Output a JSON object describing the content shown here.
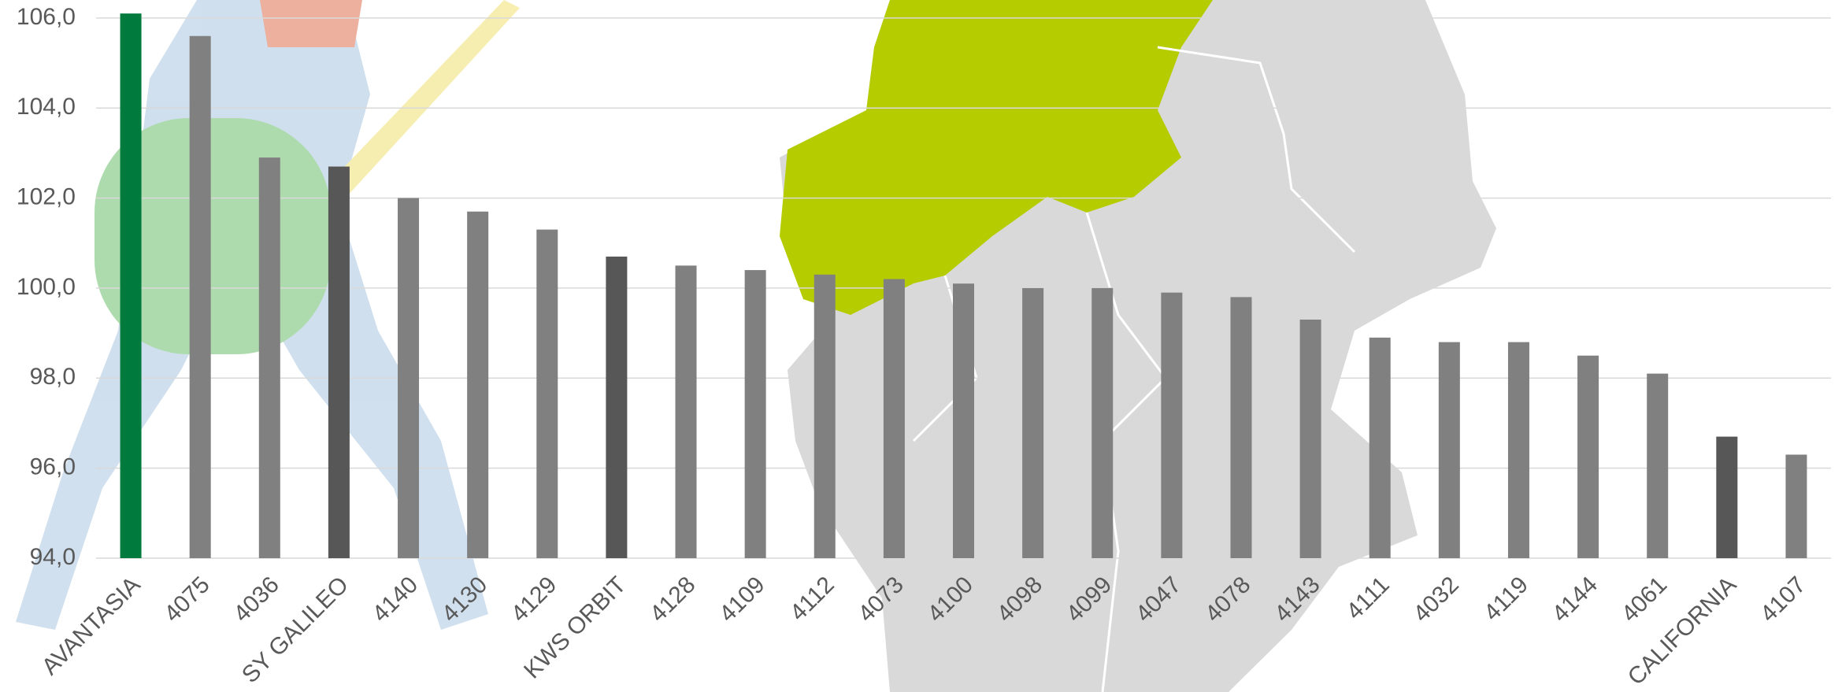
{
  "chart_data": {
    "type": "bar",
    "categories": [
      "AVANTASIA",
      "4075",
      "4036",
      "SY GALILEO",
      "4140",
      "4130",
      "4129",
      "KWS ORBIT",
      "4128",
      "4109",
      "4112",
      "4073",
      "4100",
      "4098",
      "4099",
      "4047",
      "4078",
      "4143",
      "4111",
      "4032",
      "4119",
      "4144",
      "4061",
      "CALIFORNIA",
      "4107"
    ],
    "values": [
      106.1,
      105.6,
      102.9,
      102.7,
      102.0,
      101.7,
      101.3,
      100.7,
      100.5,
      100.4,
      100.3,
      100.2,
      100.1,
      100.0,
      100.0,
      99.9,
      99.8,
      99.3,
      98.9,
      98.8,
      98.8,
      98.5,
      98.1,
      96.7,
      96.3
    ],
    "colors": [
      "#007a3d",
      "#808080",
      "#808080",
      "#575757",
      "#808080",
      "#808080",
      "#808080",
      "#575757",
      "#808080",
      "#808080",
      "#808080",
      "#808080",
      "#808080",
      "#808080",
      "#808080",
      "#808080",
      "#808080",
      "#808080",
      "#808080",
      "#808080",
      "#808080",
      "#808080",
      "#808080",
      "#575757",
      "#808080"
    ],
    "ylim": [
      94,
      106.4
    ],
    "yticks": [
      {
        "value": 94,
        "label": "94,0"
      },
      {
        "value": 96,
        "label": "96,0"
      },
      {
        "value": 98,
        "label": "98,0"
      },
      {
        "value": 100,
        "label": "100,0"
      },
      {
        "value": 102,
        "label": "102,0"
      },
      {
        "value": 104,
        "label": "104,0"
      },
      {
        "value": 106,
        "label": "106,0"
      }
    ],
    "grid": true
  }
}
